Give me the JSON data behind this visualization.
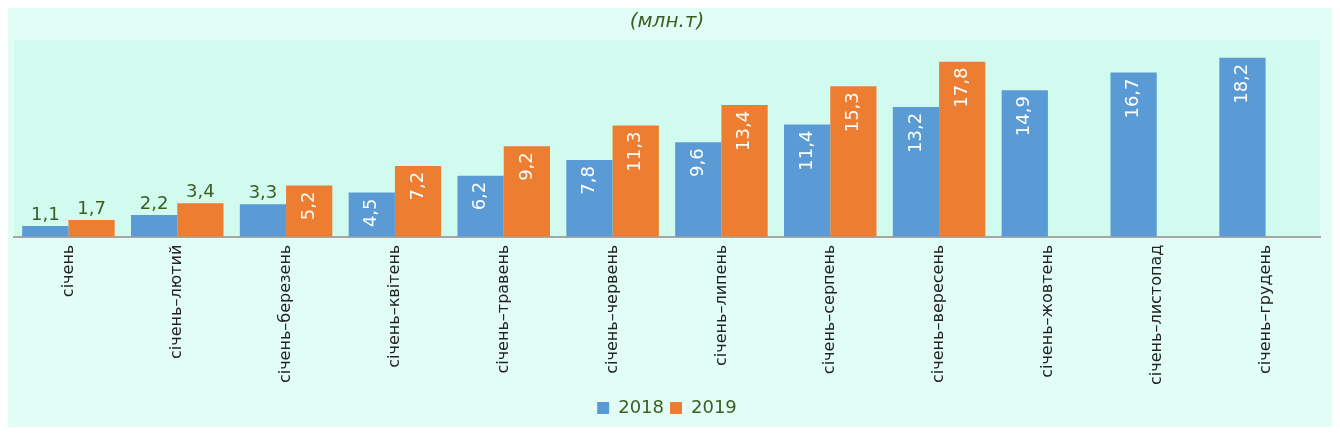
{
  "chart_data": {
    "type": "bar",
    "title": "(млн.т)",
    "categories": [
      "січень",
      "січень–лютий",
      "січень–березень",
      "січень–квітень",
      "січень–травень",
      "січень–червень",
      "січень–липень",
      "січень–серпень",
      "січень–вересень",
      "січень–жовтень",
      "січень–листопад",
      "січень–грудень"
    ],
    "series": [
      {
        "name": "2018",
        "color": "#5b9bd5",
        "values": [
          1.1,
          2.2,
          3.3,
          4.5,
          6.2,
          7.8,
          9.6,
          11.4,
          13.2,
          14.9,
          16.7,
          18.2
        ],
        "value_labels": [
          "1,1",
          "2,2",
          "3,3",
          "4,5",
          "6,2",
          "7,8",
          "9,6",
          "11,4",
          "13,2",
          "14,9",
          "16,7",
          "18,2"
        ]
      },
      {
        "name": "2019",
        "color": "#ed7d31",
        "values": [
          1.7,
          3.4,
          5.2,
          7.2,
          9.2,
          11.3,
          13.4,
          15.3,
          17.8,
          null,
          null,
          null
        ],
        "value_labels": [
          "1,7",
          "3,4",
          "5,2",
          "7,2",
          "9,2",
          "11,3",
          "13,4",
          "15,3",
          "17,8",
          null,
          null,
          null
        ]
      }
    ],
    "grid": false,
    "legend": "bottom"
  }
}
